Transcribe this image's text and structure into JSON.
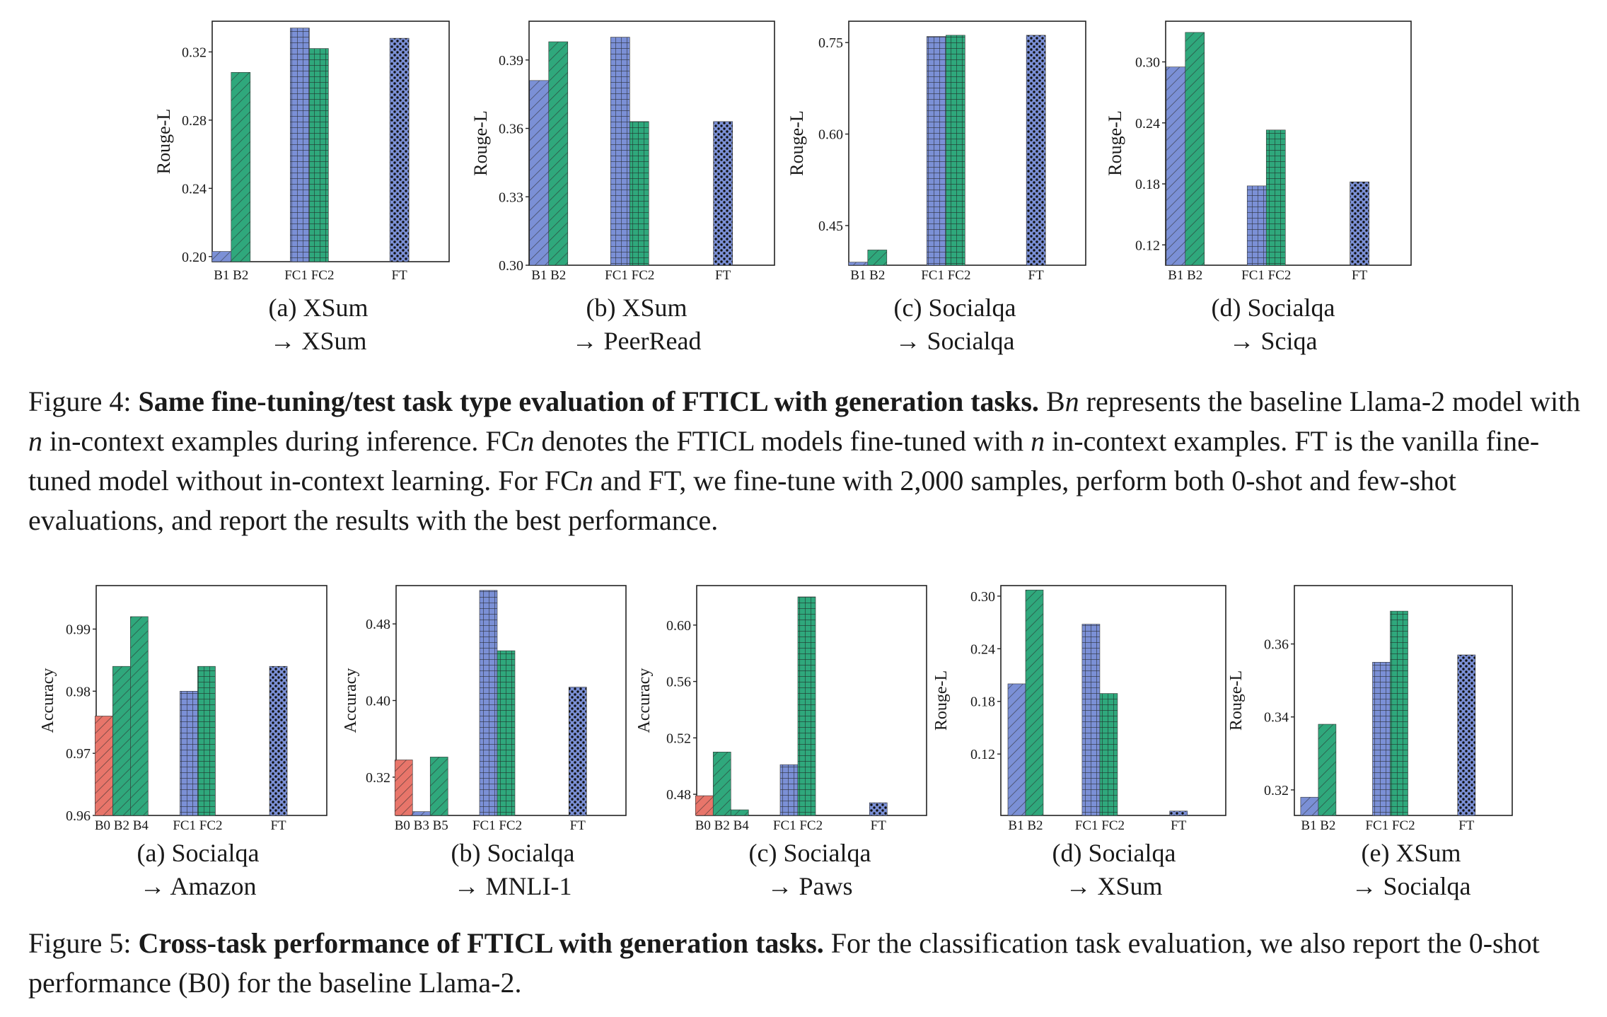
{
  "figure4": {
    "caption": {
      "label": "Figure 4:",
      "bold": "Same fine-tuning/test task type evaluation of FTICL with generation tasks.",
      "text": "Bn represents the baseline Llama-2 model with n in-context examples during inference. FCn denotes the FTICL models fine-tuned with n in-context examples. FT is the vanilla fine-tuned model without in-context learning. For FCn and FT, we fine-tune with 2,000 samples, perform both 0-shot and few-shot evaluations, and report the results with the best performance."
    }
  },
  "figure5": {
    "caption": {
      "label": "Figure 5:",
      "bold": "Cross-task performance of FTICL with generation tasks.",
      "text": "For the classification task evaluation, we also report the 0-shot performance (B0) for the baseline Llama-2."
    }
  },
  "colors": {
    "B0": "#e8756a",
    "B1": "#7b90d6",
    "B2": "#2fa87c",
    "B3": "#7b90d6",
    "B4": "#2fa87c",
    "B5": "#2fa87c",
    "FC1": "#7b90d6",
    "FC2": "#2fa87c",
    "FT": "#7b90d6"
  },
  "chart_data": [
    {
      "type": "bar",
      "caption": [
        "(a) XSum",
        "→ XSum"
      ],
      "ylabel": "Rouge-L",
      "ylim": [
        0.197,
        0.338
      ],
      "yticks": [
        0.2,
        0.24,
        0.28,
        0.32
      ],
      "groups": [
        {
          "label": "B1 B2",
          "bars": [
            {
              "name": "B1",
              "value": 0.203
            },
            {
              "name": "B2",
              "value": 0.308
            }
          ]
        },
        {
          "label": "FC1 FC2",
          "bars": [
            {
              "name": "FC1",
              "value": 0.334
            },
            {
              "name": "FC2",
              "value": 0.322
            }
          ]
        },
        {
          "label": "FT",
          "bars": [
            {
              "name": "FT",
              "value": 0.328
            }
          ]
        }
      ]
    },
    {
      "type": "bar",
      "caption": [
        "(b) XSum",
        "→ PeerRead"
      ],
      "ylabel": "Rouge-L",
      "ylim": [
        0.3,
        0.407
      ],
      "yticks": [
        0.3,
        0.33,
        0.36,
        0.39
      ],
      "groups": [
        {
          "label": "B1 B2",
          "bars": [
            {
              "name": "B1",
              "value": 0.381
            },
            {
              "name": "B2",
              "value": 0.398
            }
          ]
        },
        {
          "label": "FC1 FC2",
          "bars": [
            {
              "name": "FC1",
              "value": 0.4
            },
            {
              "name": "FC2",
              "value": 0.363
            }
          ]
        },
        {
          "label": "FT",
          "bars": [
            {
              "name": "FT",
              "value": 0.363
            }
          ]
        }
      ]
    },
    {
      "type": "bar",
      "caption": [
        "(c) Socialqa",
        "→ Socialqa"
      ],
      "ylabel": "Rouge-L",
      "ylim": [
        0.385,
        0.785
      ],
      "yticks": [
        0.45,
        0.6,
        0.75
      ],
      "groups": [
        {
          "label": "B1 B2",
          "bars": [
            {
              "name": "B1",
              "value": 0.39
            },
            {
              "name": "B2",
              "value": 0.41
            }
          ]
        },
        {
          "label": "FC1 FC2",
          "bars": [
            {
              "name": "FC1",
              "value": 0.76
            },
            {
              "name": "FC2",
              "value": 0.762
            }
          ]
        },
        {
          "label": "FT",
          "bars": [
            {
              "name": "FT",
              "value": 0.762
            }
          ]
        }
      ]
    },
    {
      "type": "bar",
      "caption": [
        "(d) Socialqa",
        "→ Sciqa"
      ],
      "ylabel": "Rouge-L",
      "ylim": [
        0.1,
        0.34
      ],
      "yticks": [
        0.12,
        0.18,
        0.24,
        0.3
      ],
      "groups": [
        {
          "label": "B1 B2",
          "bars": [
            {
              "name": "B1",
              "value": 0.295
            },
            {
              "name": "B2",
              "value": 0.329
            }
          ]
        },
        {
          "label": "FC1 FC2",
          "bars": [
            {
              "name": "FC1",
              "value": 0.178
            },
            {
              "name": "FC2",
              "value": 0.233
            }
          ]
        },
        {
          "label": "FT",
          "bars": [
            {
              "name": "FT",
              "value": 0.182
            }
          ]
        }
      ]
    },
    {
      "type": "bar",
      "caption": [
        "(a) Socialqa",
        "→ Amazon"
      ],
      "ylabel": "Accuracy",
      "ylim": [
        0.96,
        0.997
      ],
      "yticks": [
        0.96,
        0.97,
        0.98,
        0.99
      ],
      "groups": [
        {
          "label": "B0 B2 B4",
          "bars": [
            {
              "name": "B0",
              "value": 0.976
            },
            {
              "name": "B2",
              "value": 0.984
            },
            {
              "name": "B4",
              "value": 0.992
            }
          ]
        },
        {
          "label": "FC1 FC2",
          "bars": [
            {
              "name": "FC1",
              "value": 0.98
            },
            {
              "name": "FC2",
              "value": 0.984
            }
          ]
        },
        {
          "label": "FT",
          "bars": [
            {
              "name": "FT",
              "value": 0.984
            }
          ]
        }
      ]
    },
    {
      "type": "bar",
      "caption": [
        "(b) Socialqa",
        "→ MNLI-1"
      ],
      "ylabel": "Accuracy",
      "ylim": [
        0.28,
        0.52
      ],
      "yticks": [
        0.32,
        0.4,
        0.48
      ],
      "groups": [
        {
          "label": "B0 B3 B5",
          "bars": [
            {
              "name": "B0",
              "value": 0.338
            },
            {
              "name": "B3",
              "value": 0.284
            },
            {
              "name": "B5",
              "value": 0.341
            }
          ]
        },
        {
          "label": "FC1 FC2",
          "bars": [
            {
              "name": "FC1",
              "value": 0.515
            },
            {
              "name": "FC2",
              "value": 0.452
            }
          ]
        },
        {
          "label": "FT",
          "bars": [
            {
              "name": "FT",
              "value": 0.414
            }
          ]
        }
      ]
    },
    {
      "type": "bar",
      "caption": [
        "(c) Socialqa",
        "→ Paws"
      ],
      "ylabel": "Accuracy",
      "ylim": [
        0.465,
        0.628
      ],
      "yticks": [
        0.48,
        0.52,
        0.56,
        0.6
      ],
      "groups": [
        {
          "label": "B0 B2 B4",
          "bars": [
            {
              "name": "B0",
              "value": 0.479
            },
            {
              "name": "B2",
              "value": 0.51
            },
            {
              "name": "B4",
              "value": 0.469
            }
          ]
        },
        {
          "label": "FC1 FC2",
          "bars": [
            {
              "name": "FC1",
              "value": 0.501
            },
            {
              "name": "FC2",
              "value": 0.62
            }
          ]
        },
        {
          "label": "FT",
          "bars": [
            {
              "name": "FT",
              "value": 0.474
            }
          ]
        }
      ]
    },
    {
      "type": "bar",
      "caption": [
        "(d) Socialqa",
        "→ XSum"
      ],
      "ylabel": "Rouge-L",
      "ylim": [
        0.05,
        0.312
      ],
      "yticks": [
        0.12,
        0.18,
        0.24,
        0.3
      ],
      "groups": [
        {
          "label": "B1 B2",
          "bars": [
            {
              "name": "B1",
              "value": 0.2
            },
            {
              "name": "B2",
              "value": 0.307
            }
          ]
        },
        {
          "label": "FC1 FC2",
          "bars": [
            {
              "name": "FC1",
              "value": 0.268
            },
            {
              "name": "FC2",
              "value": 0.189
            }
          ]
        },
        {
          "label": "FT",
          "bars": [
            {
              "name": "FT",
              "value": 0.055
            }
          ]
        }
      ]
    },
    {
      "type": "bar",
      "caption": [
        "(e) XSum",
        "→ Socialqa"
      ],
      "ylabel": "Rouge-L",
      "ylim": [
        0.313,
        0.376
      ],
      "yticks": [
        0.32,
        0.34,
        0.36
      ],
      "groups": [
        {
          "label": "B1 B2",
          "bars": [
            {
              "name": "B1",
              "value": 0.318
            },
            {
              "name": "B2",
              "value": 0.338
            }
          ]
        },
        {
          "label": "FC1 FC2",
          "bars": [
            {
              "name": "FC1",
              "value": 0.355
            },
            {
              "name": "FC2",
              "value": 0.369
            }
          ]
        },
        {
          "label": "FT",
          "bars": [
            {
              "name": "FT",
              "value": 0.357
            }
          ]
        }
      ]
    }
  ]
}
